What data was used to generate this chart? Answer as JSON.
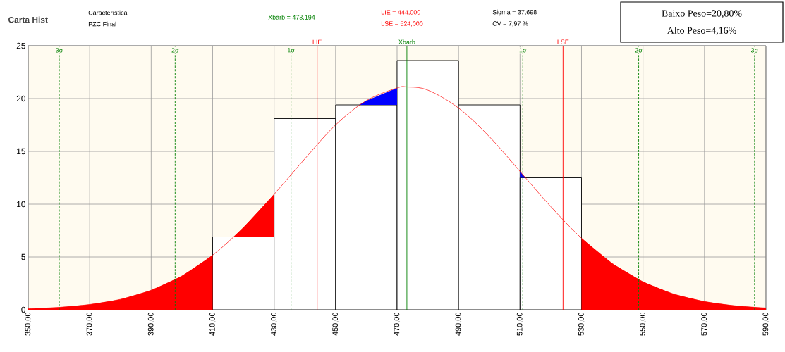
{
  "chart_data": {
    "type": "histogram",
    "title": "Carta Hist",
    "annotations": [
      "Característica",
      "PZC Final",
      "Xbarb = 473,194",
      "LIE = 444,000",
      "LSE = 524,000",
      "Sigma = 37,698",
      "CV = 7,97 %",
      "Baixo Peso=20,80%",
      "Alto Peso=4,16%"
    ],
    "bins": [
      410,
      430,
      450,
      470,
      490,
      510,
      530
    ],
    "values": [
      6.9,
      18.1,
      19.4,
      23.6,
      19.4,
      12.5
    ],
    "color": "#ffffff",
    "series": [
      {
        "type": "area",
        "color": "#ff0000",
        "x": [
          350,
          360,
          370,
          380,
          390,
          400,
          410
        ],
        "values": [
          0.1,
          0.23,
          0.5,
          0.99,
          1.85,
          3.2,
          5.17
        ]
      },
      {
        "type": "area",
        "color": "#ff0000",
        "x": [
          416.8,
          420,
          430
        ],
        "values": [
          6.9,
          7.79,
          10.94
        ]
      },
      {
        "type": "area",
        "color": "#ff0000",
        "x": [
          530,
          540,
          550,
          560,
          570,
          580,
          590
        ],
        "values": [
          6.78,
          4.39,
          2.65,
          1.49,
          0.78,
          0.38,
          0.17
        ]
      },
      {
        "type": "area",
        "color": "#0000ff",
        "x": [
          457.7,
          460,
          470
        ],
        "values": [
          19.4,
          19.8,
          21.0
        ]
      },
      {
        "type": "area",
        "color": "#0000ff",
        "x": [
          510,
          511.8
        ],
        "values": [
          13.1,
          12.5
        ]
      },
      {
        "type": "line",
        "color": "#ff0000",
        "x": [
          350,
          360,
          370,
          380,
          390,
          400,
          410,
          420,
          430,
          440,
          450,
          460,
          470,
          473.2,
          480,
          490,
          500,
          510,
          520,
          530,
          540,
          550,
          560,
          570,
          580,
          590
        ],
        "values": [
          0.1,
          0.23,
          0.5,
          0.99,
          1.85,
          3.2,
          5.17,
          7.79,
          10.94,
          14.3,
          17.5,
          19.8,
          21.0,
          21.1,
          20.8,
          19.1,
          16.4,
          13.1,
          9.77,
          6.78,
          4.39,
          2.65,
          1.49,
          0.78,
          0.38,
          0.17
        ]
      }
    ],
    "ref_lines": [
      {
        "axis": "x",
        "value": 360.1,
        "label": "3σ",
        "color": "#008000",
        "line_style": "dashed"
      },
      {
        "axis": "x",
        "value": 397.8,
        "label": "2σ",
        "color": "#008000",
        "line_style": "dashed"
      },
      {
        "axis": "x",
        "value": 435.5,
        "label": "1σ",
        "color": "#008000",
        "line_style": "dashed"
      },
      {
        "axis": "x",
        "value": 510.9,
        "label": "1σ",
        "color": "#008000",
        "line_style": "dashed"
      },
      {
        "axis": "x",
        "value": 548.6,
        "label": "2σ",
        "color": "#008000",
        "line_style": "dashed"
      },
      {
        "axis": "x",
        "value": 586.3,
        "label": "3σ",
        "color": "#008000",
        "line_style": "dashed"
      },
      {
        "axis": "x",
        "value": 444,
        "label": "LIE",
        "color": "#ff0000",
        "line_style": "solid"
      },
      {
        "axis": "x",
        "value": 473.194,
        "label": "Xbarb",
        "color": "#008000",
        "line_style": "solid"
      },
      {
        "axis": "x",
        "value": 524,
        "label": "LSE",
        "color": "#ff0000",
        "line_style": "solid"
      }
    ],
    "xlim": [
      350,
      590
    ],
    "ylim": [
      0,
      25
    ],
    "xticks": [
      {
        "value": 350,
        "label": "350,00"
      },
      {
        "value": 370,
        "label": "370,00"
      },
      {
        "value": 390,
        "label": "390,00"
      },
      {
        "value": 410,
        "label": "410,00"
      },
      {
        "value": 430,
        "label": "430,00"
      },
      {
        "value": 450,
        "label": "450,00"
      },
      {
        "value": 470,
        "label": "470,00"
      },
      {
        "value": 490,
        "label": "490,00"
      },
      {
        "value": 510,
        "label": "510,00"
      },
      {
        "value": 530,
        "label": "530,00"
      },
      {
        "value": 550,
        "label": "550,00"
      },
      {
        "value": 570,
        "label": "570,00"
      },
      {
        "value": 590,
        "label": "590,00"
      }
    ],
    "yticks": [
      0,
      5,
      10,
      15,
      20,
      25
    ],
    "grid": true
  }
}
